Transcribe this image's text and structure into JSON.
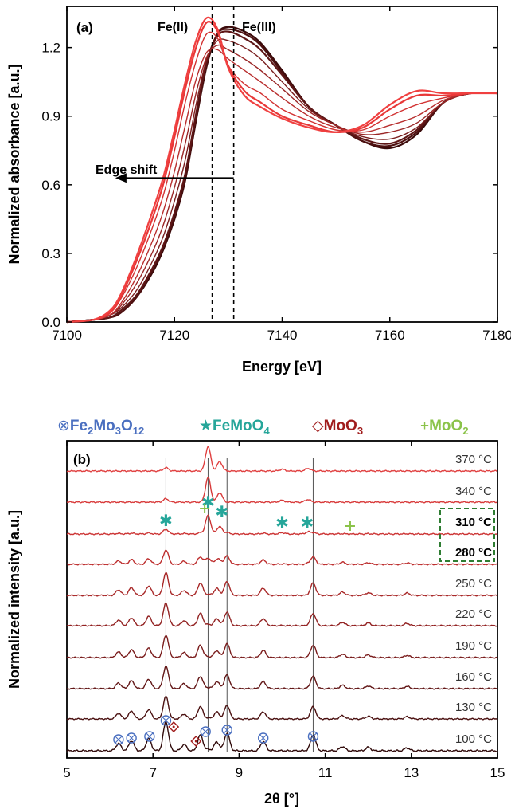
{
  "chart_data": [
    {
      "type": "line",
      "panel_label": "(a)",
      "xlabel": "Energy [eV]",
      "ylabel": "Normalized absorbance [a.u.]",
      "xlim": [
        7100,
        7180
      ],
      "ylim": [
        0.0,
        1.38
      ],
      "xticks": [
        "7100",
        "7120",
        "7140",
        "7160",
        "7180"
      ],
      "yticks": [
        "0.0",
        "0.3",
        "0.6",
        "0.9",
        "1.2"
      ],
      "xtick_values": [
        7100,
        7120,
        7140,
        7160,
        7180
      ],
      "ytick_values": [
        0.0,
        0.3,
        0.6,
        0.9,
        1.2
      ],
      "grid": false,
      "annotations": {
        "fe2": "Fe(II)",
        "fe3": "Fe(III)",
        "edge_shift": "Edge shift"
      },
      "reference_lines": [
        7127,
        7131
      ],
      "edge_shift_arrow": {
        "from_x": 7131,
        "to_x": 7109,
        "y": 0.63
      },
      "series_colors": [
        "#3a0a0a",
        "#4d1010",
        "#5e1616",
        "#7a1e1e",
        "#9a2626",
        "#b82e2e",
        "#d23232",
        "#e83838",
        "#f04040"
      ],
      "series": [
        {
          "x": [
            7100,
            7105,
            7108,
            7110,
            7113,
            7116,
            7118,
            7120,
            7122,
            7124,
            7126,
            7128,
            7130,
            7133,
            7136,
            7140,
            7145,
            7150,
            7155,
            7160,
            7165,
            7170,
            7175,
            7180
          ],
          "values": [
            0.0,
            0.01,
            0.02,
            0.04,
            0.11,
            0.22,
            0.32,
            0.45,
            0.62,
            0.88,
            1.12,
            1.26,
            1.29,
            1.27,
            1.22,
            1.1,
            0.94,
            0.86,
            0.79,
            0.76,
            0.82,
            0.96,
            1.0,
            1.0
          ]
        },
        {
          "x": [
            7100,
            7105,
            7108,
            7110,
            7113,
            7116,
            7118,
            7120,
            7122,
            7124,
            7126,
            7128,
            7130,
            7133,
            7136,
            7140,
            7145,
            7150,
            7155,
            7160,
            7165,
            7170,
            7175,
            7180
          ],
          "values": [
            0.0,
            0.01,
            0.02,
            0.04,
            0.11,
            0.23,
            0.33,
            0.46,
            0.63,
            0.89,
            1.13,
            1.26,
            1.28,
            1.26,
            1.21,
            1.09,
            0.94,
            0.86,
            0.79,
            0.77,
            0.83,
            0.96,
            1.0,
            1.0
          ]
        },
        {
          "x": [
            7100,
            7105,
            7108,
            7110,
            7113,
            7116,
            7118,
            7120,
            7122,
            7124,
            7126,
            7128,
            7130,
            7133,
            7136,
            7140,
            7145,
            7150,
            7155,
            7160,
            7165,
            7170,
            7175,
            7180
          ],
          "values": [
            0.0,
            0.01,
            0.02,
            0.05,
            0.12,
            0.24,
            0.34,
            0.48,
            0.65,
            0.91,
            1.14,
            1.25,
            1.27,
            1.24,
            1.19,
            1.08,
            0.94,
            0.86,
            0.8,
            0.78,
            0.84,
            0.96,
            1.0,
            1.0
          ]
        },
        {
          "x": [
            7100,
            7105,
            7108,
            7110,
            7113,
            7116,
            7118,
            7120,
            7122,
            7124,
            7126,
            7128,
            7130,
            7133,
            7136,
            7140,
            7145,
            7150,
            7155,
            7160,
            7165,
            7170,
            7175,
            7180
          ],
          "values": [
            0.0,
            0.01,
            0.03,
            0.06,
            0.14,
            0.27,
            0.38,
            0.53,
            0.71,
            0.95,
            1.15,
            1.23,
            1.23,
            1.2,
            1.15,
            1.05,
            0.93,
            0.86,
            0.81,
            0.8,
            0.85,
            0.96,
            1.0,
            1.0
          ]
        },
        {
          "x": [
            7100,
            7105,
            7108,
            7110,
            7113,
            7116,
            7118,
            7120,
            7122,
            7124,
            7126,
            7128,
            7130,
            7133,
            7136,
            7140,
            7145,
            7150,
            7155,
            7160,
            7165,
            7170,
            7175,
            7180
          ],
          "values": [
            0.0,
            0.01,
            0.03,
            0.07,
            0.17,
            0.31,
            0.43,
            0.59,
            0.78,
            1.0,
            1.16,
            1.21,
            1.19,
            1.15,
            1.1,
            1.02,
            0.92,
            0.86,
            0.82,
            0.83,
            0.87,
            0.96,
            1.0,
            1.0
          ]
        },
        {
          "x": [
            7100,
            7105,
            7108,
            7110,
            7113,
            7116,
            7118,
            7120,
            7122,
            7124,
            7126,
            7128,
            7130,
            7133,
            7136,
            7140,
            7145,
            7150,
            7155,
            7160,
            7165,
            7170,
            7175,
            7180
          ],
          "values": [
            0.0,
            0.01,
            0.03,
            0.08,
            0.2,
            0.36,
            0.49,
            0.66,
            0.86,
            1.06,
            1.18,
            1.19,
            1.15,
            1.1,
            1.05,
            0.98,
            0.9,
            0.85,
            0.83,
            0.86,
            0.9,
            0.97,
            1.0,
            1.0
          ]
        },
        {
          "x": [
            7100,
            7105,
            7108,
            7110,
            7113,
            7116,
            7118,
            7120,
            7122,
            7124,
            7126,
            7128,
            7130,
            7133,
            7136,
            7140,
            7145,
            7150,
            7155,
            7160,
            7165,
            7170,
            7175,
            7180
          ],
          "values": [
            0.0,
            0.01,
            0.04,
            0.1,
            0.24,
            0.42,
            0.56,
            0.75,
            0.96,
            1.14,
            1.26,
            1.24,
            1.12,
            1.04,
            1.0,
            0.93,
            0.88,
            0.84,
            0.84,
            0.9,
            0.95,
            0.98,
            1.0,
            1.0
          ]
        },
        {
          "x": [
            7100,
            7105,
            7108,
            7110,
            7113,
            7116,
            7118,
            7120,
            7122,
            7124,
            7126,
            7128,
            7130,
            7133,
            7136,
            7140,
            7145,
            7150,
            7155,
            7160,
            7165,
            7170,
            7175,
            7180
          ],
          "values": [
            0.0,
            0.01,
            0.04,
            0.11,
            0.27,
            0.46,
            0.61,
            0.81,
            1.02,
            1.2,
            1.31,
            1.27,
            1.12,
            1.01,
            0.96,
            0.9,
            0.86,
            0.83,
            0.85,
            0.93,
            0.99,
            0.99,
            1.0,
            1.0
          ]
        },
        {
          "x": [
            7100,
            7105,
            7108,
            7110,
            7113,
            7116,
            7118,
            7120,
            7122,
            7124,
            7126,
            7128,
            7130,
            7133,
            7136,
            7140,
            7145,
            7150,
            7155,
            7160,
            7165,
            7170,
            7175,
            7180
          ],
          "values": [
            0.0,
            0.01,
            0.05,
            0.12,
            0.29,
            0.49,
            0.64,
            0.84,
            1.05,
            1.23,
            1.33,
            1.28,
            1.11,
            0.99,
            0.94,
            0.89,
            0.85,
            0.83,
            0.86,
            0.95,
            1.01,
            1.0,
            1.0,
            1.0
          ]
        }
      ]
    },
    {
      "type": "line",
      "panel_label": "(b)",
      "xlabel": "2θ  [°]",
      "ylabel": "Normalized intensity [a.u.]",
      "xlim": [
        5,
        15
      ],
      "xticks": [
        "5",
        "7",
        "9",
        "11",
        "13",
        "15"
      ],
      "xtick_values": [
        5,
        7,
        9,
        11,
        13,
        15
      ],
      "grid": false,
      "legend": [
        {
          "symbol": "⊗",
          "formula": [
            "Fe",
            "2",
            "Mo",
            "3",
            "O",
            "12"
          ],
          "color": "#4a6fc0"
        },
        {
          "symbol": "★",
          "formula": [
            "FeMoO",
            "4"
          ],
          "color": "#26a69a"
        },
        {
          "symbol": "◇",
          "formula": [
            "MoO",
            "3"
          ],
          "color": "#a01c1c"
        },
        {
          "symbol": "+",
          "formula": [
            "MoO",
            "2"
          ],
          "color": "#8bc34a"
        }
      ],
      "temperatures": [
        "370 °C",
        "340 °C",
        "310 °C",
        "280 °C",
        "250 °C",
        "220 °C",
        "190 °C",
        "160 °C",
        "130 °C",
        "100 °C"
      ],
      "highlighted_temperatures": [
        "310 °C",
        "280 °C"
      ],
      "highlight_box_color": "#2e7d32",
      "reference_lines": [
        7.3,
        8.28,
        8.72,
        10.72
      ],
      "trace_colors": [
        "#e04040",
        "#d83a3a",
        "#cc3434",
        "#bd2e2e",
        "#a82828",
        "#922222",
        "#7a1c1c",
        "#621616",
        "#4a1010",
        "#300a0a"
      ],
      "peaks_fe2mo3o12": [
        {
          "pos": 6.2,
          "h": 0.25
        },
        {
          "pos": 6.5,
          "h": 0.35
        },
        {
          "pos": 6.9,
          "h": 0.42
        },
        {
          "pos": 7.3,
          "h": 1.0
        },
        {
          "pos": 7.72,
          "h": 0.22
        },
        {
          "pos": 8.1,
          "h": 0.55
        },
        {
          "pos": 8.48,
          "h": 0.3
        },
        {
          "pos": 8.72,
          "h": 0.62
        },
        {
          "pos": 9.56,
          "h": 0.32
        },
        {
          "pos": 10.72,
          "h": 0.55
        },
        {
          "pos": 11.4,
          "h": 0.15
        },
        {
          "pos": 12.0,
          "h": 0.12
        },
        {
          "pos": 12.9,
          "h": 0.1
        }
      ],
      "peaks_femoo4": [
        {
          "pos": 7.3,
          "h": 0.15
        },
        {
          "pos": 8.28,
          "h": 1.1
        },
        {
          "pos": 8.55,
          "h": 0.42
        },
        {
          "pos": 10.0,
          "h": 0.08
        },
        {
          "pos": 10.6,
          "h": 0.12
        }
      ],
      "peak_width": 0.06,
      "markers_fe2mo3o12_x": [
        6.2,
        6.5,
        6.92,
        7.3,
        8.22,
        8.72,
        9.56,
        10.72
      ],
      "markers_moo3_x": [
        7.48,
        8.0
      ],
      "markers_femoo4_x": [
        7.3,
        8.28,
        8.6,
        10.0,
        10.58
      ],
      "markers_moo2_x": [
        8.2,
        11.58
      ]
    }
  ]
}
